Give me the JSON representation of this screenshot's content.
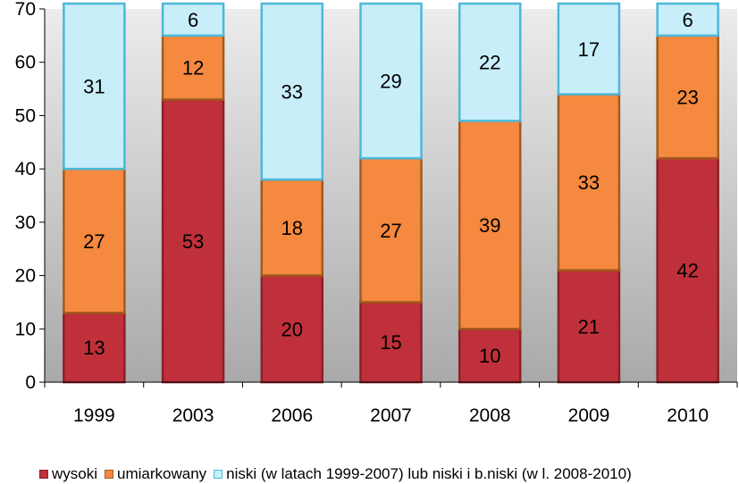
{
  "chart_data": {
    "type": "bar",
    "stacked": true,
    "categories": [
      "1999",
      "2003",
      "2006",
      "2007",
      "2008",
      "2009",
      "2010"
    ],
    "series": [
      {
        "name": "wysoki",
        "values": [
          13,
          53,
          20,
          15,
          10,
          21,
          42
        ],
        "color": "#c0303a",
        "border": "#8c1f28"
      },
      {
        "name": "umiarkowany",
        "values": [
          27,
          12,
          18,
          27,
          39,
          33,
          23
        ],
        "color": "#f4893f",
        "border": "#a35a1e"
      },
      {
        "name": "niski (w latach 1999-2007) lub niski i b.niski (w l. 2008-2010)",
        "values": [
          31,
          6,
          33,
          29,
          22,
          17,
          6
        ],
        "color": "#c8eef9",
        "border": "#4cb8d8"
      }
    ],
    "yticks": [
      "0",
      "10",
      "20",
      "30",
      "40",
      "50",
      "60",
      "70"
    ],
    "ylim": [
      0,
      70
    ],
    "grid": false,
    "plot_background": "#c0c0c0",
    "legend_position": "bottom"
  }
}
